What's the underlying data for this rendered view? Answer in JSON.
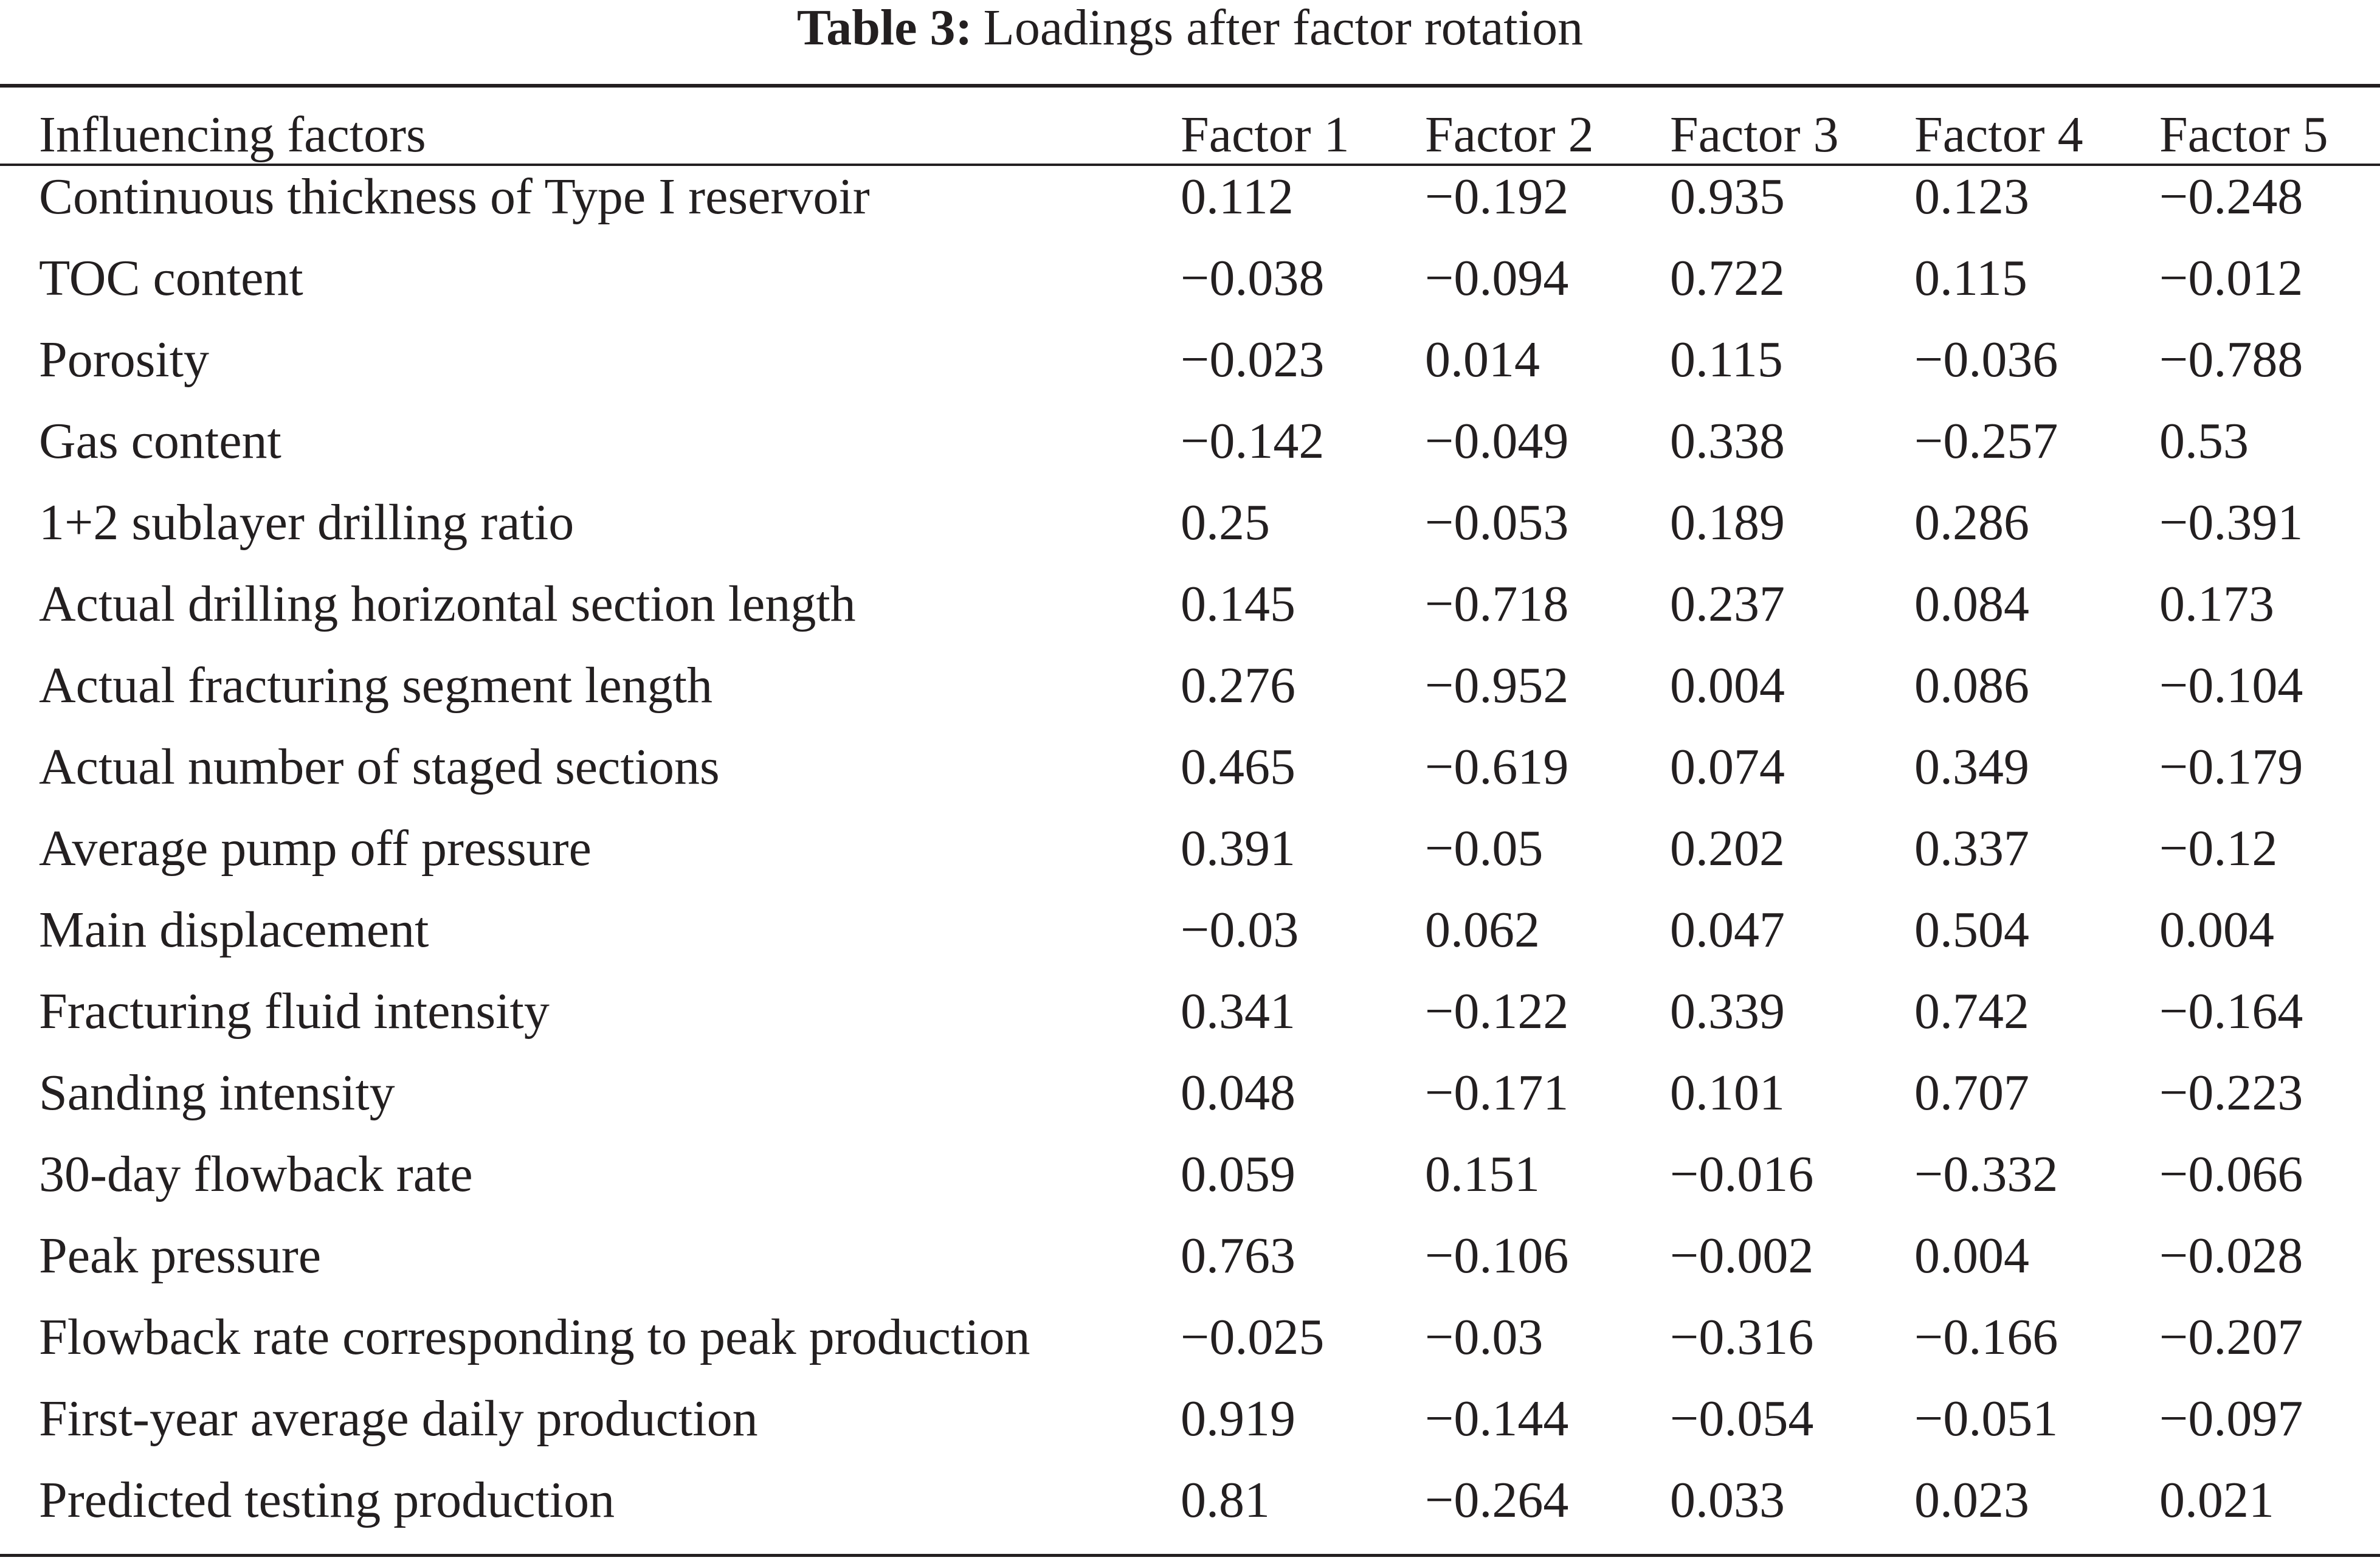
{
  "caption": {
    "label": "Table 3:",
    "title": "Loadings after factor rotation"
  },
  "table": {
    "headers": [
      "Influencing factors",
      "Factor 1",
      "Factor 2",
      "Factor 3",
      "Factor 4",
      "Factor 5"
    ],
    "rows": [
      [
        "Continuous thickness of Type I reservoir",
        "0.112",
        "−0.192",
        "0.935",
        "0.123",
        "−0.248"
      ],
      [
        "TOC content",
        "−0.038",
        "−0.094",
        "0.722",
        "0.115",
        "−0.012"
      ],
      [
        "Porosity",
        "−0.023",
        "0.014",
        "0.115",
        "−0.036",
        "−0.788"
      ],
      [
        "Gas content",
        "−0.142",
        "−0.049",
        "0.338",
        "−0.257",
        "0.53"
      ],
      [
        "1+2 sublayer drilling ratio",
        "0.25",
        "−0.053",
        "0.189",
        "0.286",
        "−0.391"
      ],
      [
        "Actual drilling horizontal section length",
        "0.145",
        "−0.718",
        "0.237",
        "0.084",
        "0.173"
      ],
      [
        "Actual fracturing segment length",
        "0.276",
        "−0.952",
        "0.004",
        "0.086",
        "−0.104"
      ],
      [
        "Actual number of staged sections",
        "0.465",
        "−0.619",
        "0.074",
        "0.349",
        "−0.179"
      ],
      [
        "Average pump off pressure",
        "0.391",
        "−0.05",
        "0.202",
        "0.337",
        "−0.12"
      ],
      [
        "Main displacement",
        "−0.03",
        "0.062",
        "0.047",
        "0.504",
        "0.004"
      ],
      [
        "Fracturing fluid intensity",
        "0.341",
        "−0.122",
        "0.339",
        "0.742",
        "−0.164"
      ],
      [
        "Sanding intensity",
        "0.048",
        "−0.171",
        "0.101",
        "0.707",
        "−0.223"
      ],
      [
        "30-day flowback rate",
        "0.059",
        "0.151",
        "−0.016",
        "−0.332",
        "−0.066"
      ],
      [
        "Peak pressure",
        "0.763",
        "−0.106",
        "−0.002",
        "0.004",
        "−0.028"
      ],
      [
        "Flowback rate corresponding to peak production",
        "−0.025",
        "−0.03",
        "−0.316",
        "−0.166",
        "−0.207"
      ],
      [
        "First-year average daily production",
        "0.919",
        "−0.144",
        "−0.054",
        "−0.051",
        "−0.097"
      ],
      [
        "Predicted testing production",
        "0.81",
        "−0.264",
        "0.033",
        "0.023",
        "0.021"
      ]
    ]
  }
}
